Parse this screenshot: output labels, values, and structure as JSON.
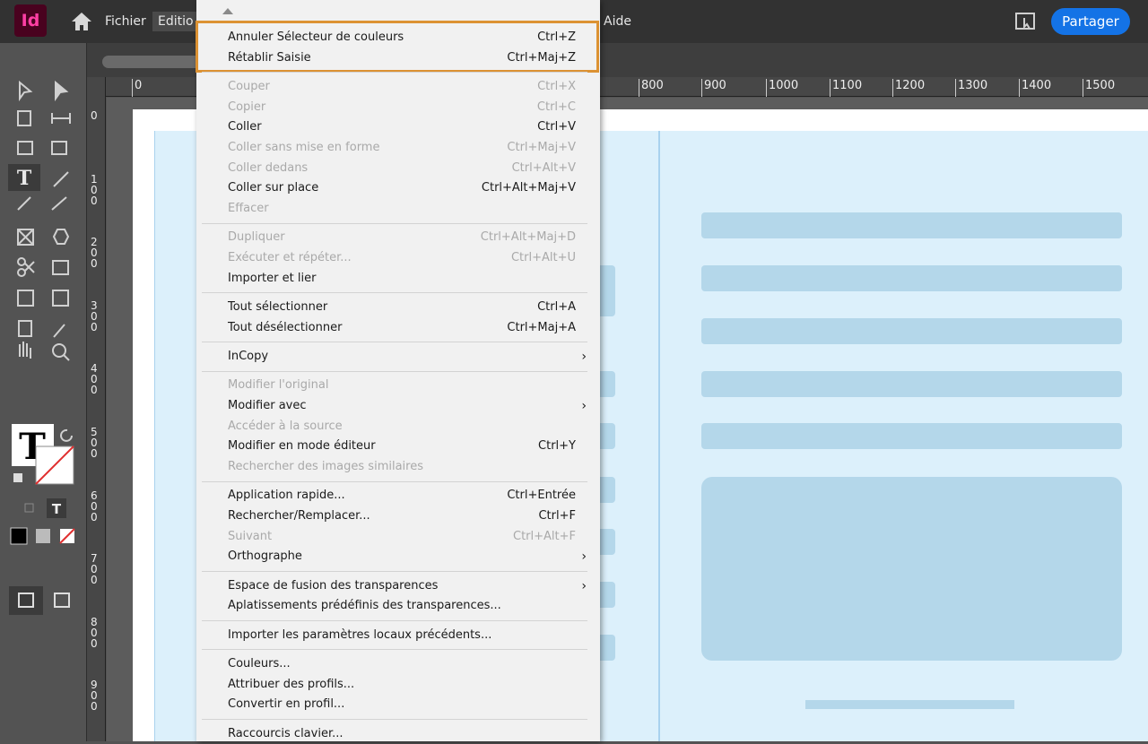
{
  "app": {
    "logo": "Id",
    "menubar": [
      "Fichier",
      "Editio",
      "Aide"
    ],
    "share": "Partager"
  },
  "ruler": {
    "horizontal": [
      "0",
      "800",
      "900",
      "1000",
      "1100",
      "1200",
      "1300",
      "1400",
      "1500"
    ],
    "vertical": [
      "0",
      "100",
      "200",
      "300",
      "400",
      "500",
      "600",
      "700",
      "800",
      "900"
    ]
  },
  "menu": {
    "groups": [
      {
        "highlight": true,
        "items": [
          {
            "label": "Annuler Sélecteur de couleurs",
            "shortcut": "Ctrl+Z",
            "enabled": true
          },
          {
            "label": "Rétablir Saisie",
            "shortcut": "Ctrl+Maj+Z",
            "enabled": true
          }
        ]
      },
      {
        "items": [
          {
            "label": "Couper",
            "shortcut": "Ctrl+X",
            "enabled": false
          },
          {
            "label": "Copier",
            "shortcut": "Ctrl+C",
            "enabled": false
          },
          {
            "label": "Coller",
            "shortcut": "Ctrl+V",
            "enabled": true
          },
          {
            "label": "Coller sans mise en forme",
            "shortcut": "Ctrl+Maj+V",
            "enabled": false
          },
          {
            "label": "Coller dedans",
            "shortcut": "Ctrl+Alt+V",
            "enabled": false
          },
          {
            "label": "Coller sur place",
            "shortcut": "Ctrl+Alt+Maj+V",
            "enabled": true
          },
          {
            "label": "Effacer",
            "enabled": false
          }
        ]
      },
      {
        "items": [
          {
            "label": "Dupliquer",
            "shortcut": "Ctrl+Alt+Maj+D",
            "enabled": false
          },
          {
            "label": "Exécuter et répéter...",
            "shortcut": "Ctrl+Alt+U",
            "enabled": false
          },
          {
            "label": "Importer et lier",
            "enabled": true
          }
        ]
      },
      {
        "items": [
          {
            "label": "Tout sélectionner",
            "shortcut": "Ctrl+A",
            "enabled": true
          },
          {
            "label": "Tout désélectionner",
            "shortcut": "Ctrl+Maj+A",
            "enabled": true
          }
        ]
      },
      {
        "items": [
          {
            "label": "InCopy",
            "enabled": true,
            "submenu": true
          }
        ]
      },
      {
        "items": [
          {
            "label": "Modifier l'original",
            "enabled": false
          },
          {
            "label": "Modifier avec",
            "enabled": true,
            "submenu": true
          },
          {
            "label": "Accéder à la source",
            "enabled": false
          },
          {
            "label": "Modifier en mode éditeur",
            "shortcut": "Ctrl+Y",
            "enabled": true
          },
          {
            "label": "Rechercher des images similaires",
            "enabled": false
          }
        ]
      },
      {
        "items": [
          {
            "label": "Application rapide...",
            "shortcut": "Ctrl+Entrée",
            "enabled": true
          },
          {
            "label": "Rechercher/Remplacer...",
            "shortcut": "Ctrl+F",
            "enabled": true
          },
          {
            "label": "Suivant",
            "shortcut": "Ctrl+Alt+F",
            "enabled": false
          },
          {
            "label": "Orthographe",
            "enabled": true,
            "submenu": true
          }
        ]
      },
      {
        "items": [
          {
            "label": "Espace de fusion des transparences",
            "enabled": true,
            "submenu": true
          },
          {
            "label": "Aplatissements prédéfinis des transparences...",
            "enabled": true
          }
        ]
      },
      {
        "items": [
          {
            "label": "Importer les paramètres locaux précédents...",
            "enabled": true
          }
        ]
      },
      {
        "items": [
          {
            "label": "Couleurs...",
            "enabled": true
          },
          {
            "label": "Attribuer des profils...",
            "enabled": true
          },
          {
            "label": "Convertir en profil...",
            "enabled": true
          }
        ]
      },
      {
        "items": [
          {
            "label": "Raccourcis clavier...",
            "enabled": true
          }
        ]
      }
    ]
  }
}
